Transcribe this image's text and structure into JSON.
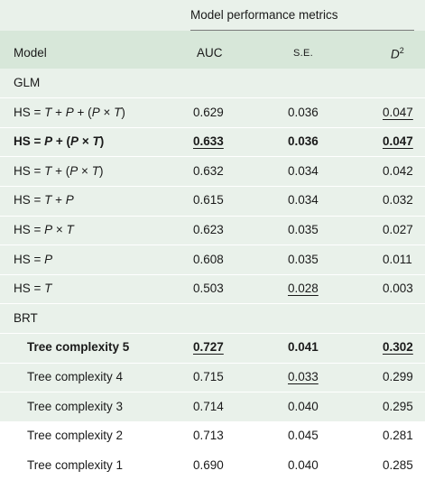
{
  "header": {
    "group_label": "Model performance metrics",
    "col_model": "Model",
    "col_auc": "AUC",
    "col_se": "S.E.",
    "col_d2_base": "D",
    "col_d2_sup": "2"
  },
  "sections": [
    {
      "title": "GLM",
      "rows": [
        {
          "model": "HS = T + P + (P × T)",
          "auc": "0.629",
          "se": "0.036",
          "d2": "0.047"
        },
        {
          "model": "HS = P + (P × T)",
          "auc": "0.633",
          "se": "0.036",
          "d2": "0.047"
        },
        {
          "model": "HS = T + (P × T)",
          "auc": "0.632",
          "se": "0.034",
          "d2": "0.042"
        },
        {
          "model": "HS = T + P",
          "auc": "0.615",
          "se": "0.034",
          "d2": "0.032"
        },
        {
          "model": "HS = P × T",
          "auc": "0.623",
          "se": "0.035",
          "d2": "0.027"
        },
        {
          "model": "HS = P",
          "auc": "0.608",
          "se": "0.035",
          "d2": "0.011"
        },
        {
          "model": "HS = T",
          "auc": "0.503",
          "se": "0.028",
          "d2": "0.003"
        }
      ]
    },
    {
      "title": "BRT",
      "rows": [
        {
          "model": "Tree complexity 5",
          "auc": "0.727",
          "se": "0.041",
          "d2": "0.302"
        },
        {
          "model": "Tree complexity 4",
          "auc": "0.715",
          "se": "0.033",
          "d2": "0.299"
        },
        {
          "model": "Tree complexity 3",
          "auc": "0.714",
          "se": "0.040",
          "d2": "0.295"
        },
        {
          "model": "Tree complexity 2",
          "auc": "0.713",
          "se": "0.045",
          "d2": "0.281"
        },
        {
          "model": "Tree complexity 1",
          "auc": "0.690",
          "se": "0.040",
          "d2": "0.285"
        }
      ]
    }
  ]
}
